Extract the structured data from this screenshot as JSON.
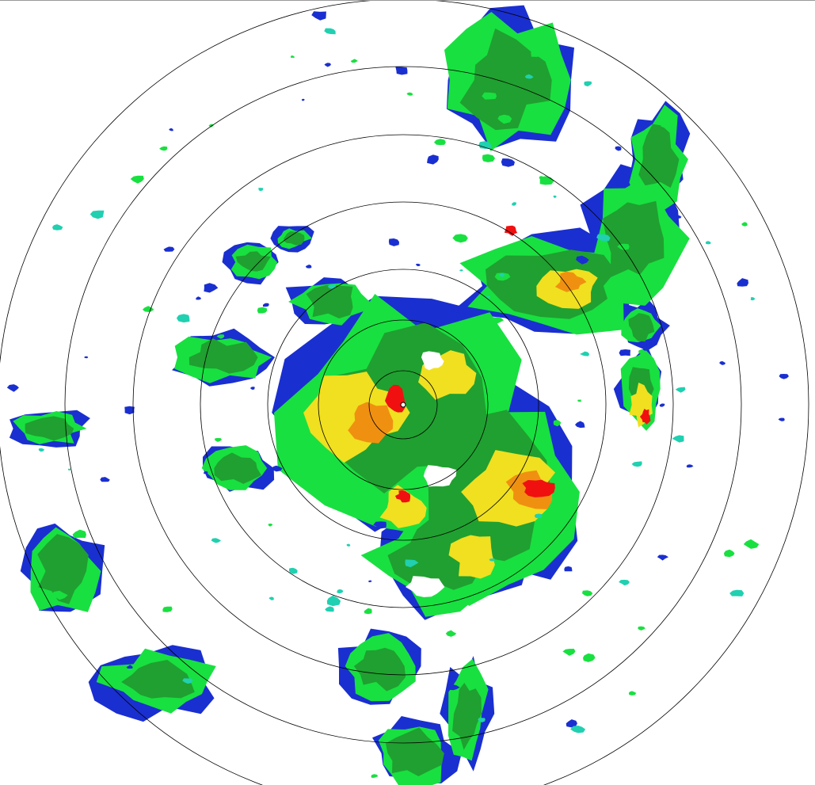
{
  "radar": {
    "range_ring_count": 7,
    "palette": {
      "weak": "#1a2fd0",
      "light": "#20d0b0",
      "moderate": "#18e040",
      "moderate_dark": "#20a030",
      "heavy": "#f0e020",
      "intense": "#f09010",
      "extreme": "#f01010"
    },
    "ring_color": "#000000",
    "background": "#ffffff"
  }
}
